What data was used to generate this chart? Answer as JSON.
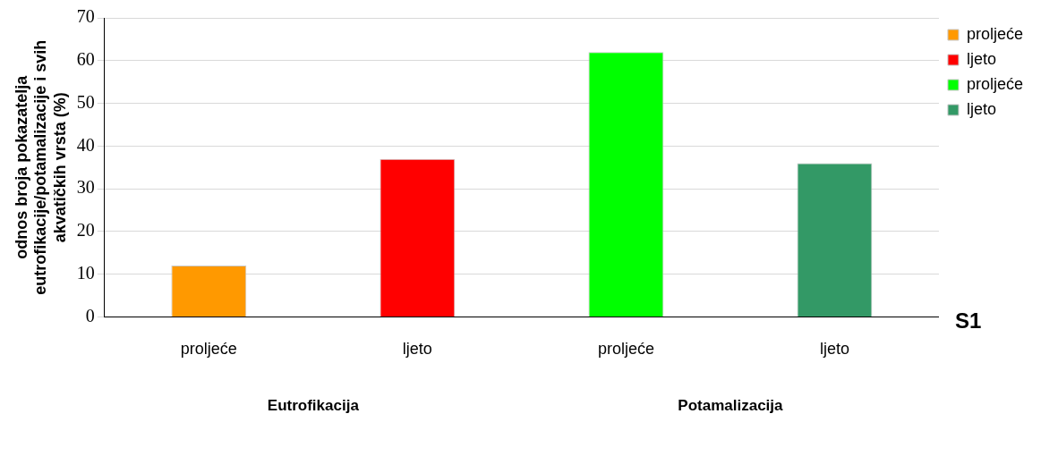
{
  "chart_data": {
    "type": "bar",
    "ylabel": "odnos broja pokazatelja\neutrofikacije/potamalizacije i svih\nakvatičkih vrsta (%)",
    "categories": [
      "proljeće",
      "ljeto",
      "proljeće",
      "ljeto"
    ],
    "series": [
      {
        "name": "proljeće",
        "color": "#ff9900",
        "values": [
          12,
          null,
          null,
          null
        ]
      },
      {
        "name": "ljeto",
        "color": "#ff0000",
        "values": [
          null,
          37,
          null,
          null
        ]
      },
      {
        "name": "proljeće",
        "color": "#00ff00",
        "values": [
          null,
          null,
          62,
          null
        ]
      },
      {
        "name": "ljeto",
        "color": "#339966",
        "values": [
          null,
          null,
          null,
          36
        ]
      }
    ],
    "ylim": [
      0,
      70
    ],
    "yticks": [
      0,
      10,
      20,
      30,
      40,
      50,
      60,
      70
    ],
    "grid": "y",
    "legend": "top right",
    "annotations": [
      "Eutrofikacija",
      "Potamalizacija",
      "S1"
    ]
  }
}
